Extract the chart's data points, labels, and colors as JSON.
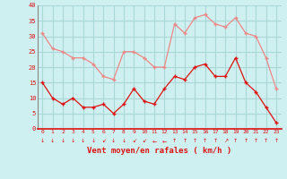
{
  "wind_avg": [
    15,
    10,
    8,
    10,
    7,
    7,
    8,
    5,
    8,
    13,
    9,
    8,
    13,
    17,
    16,
    20,
    21,
    17,
    17,
    23,
    15,
    12,
    7,
    2
  ],
  "wind_gust": [
    31,
    26,
    25,
    23,
    23,
    21,
    17,
    16,
    25,
    25,
    23,
    20,
    20,
    34,
    31,
    36,
    37,
    34,
    33,
    36,
    31,
    30,
    23,
    13
  ],
  "x_labels": [
    "0",
    "1",
    "2",
    "3",
    "4",
    "5",
    "6",
    "7",
    "8",
    "9",
    "10",
    "11",
    "12",
    "13",
    "14",
    "15",
    "16",
    "17",
    "18",
    "19",
    "20",
    "21",
    "22",
    "23"
  ],
  "arrow_chars": [
    "↓",
    "↓",
    "↓",
    "↓",
    "↓",
    "↓",
    "↙",
    "↓",
    "↓",
    "↙",
    "↙",
    "←",
    "←",
    "↑",
    "↑",
    "↑",
    "↑",
    "↑",
    "↗",
    "↑",
    "↑",
    "↑",
    "↑",
    "↑"
  ],
  "xlabel": "Vent moyen/en rafales ( km/h )",
  "bg_color": "#cff0f0",
  "grid_color": "#aad8d8",
  "avg_color": "#dd1111",
  "gust_color": "#ee8888",
  "ylim": [
    0,
    40
  ],
  "yticks": [
    0,
    5,
    10,
    15,
    20,
    25,
    30,
    35,
    40
  ]
}
